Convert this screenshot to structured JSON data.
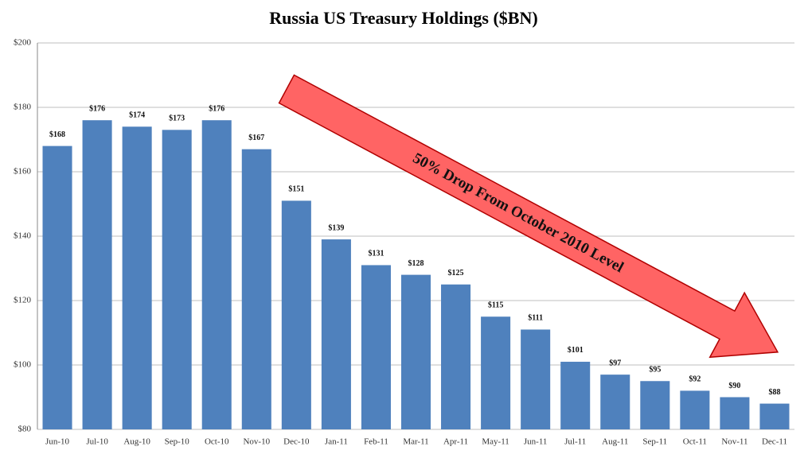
{
  "chart_data": {
    "type": "bar",
    "title": "Russia US Treasury Holdings ($BN)",
    "categories": [
      "Jun-10",
      "Jul-10",
      "Aug-10",
      "Sep-10",
      "Oct-10",
      "Nov-10",
      "Dec-10",
      "Jan-11",
      "Feb-11",
      "Mar-11",
      "Apr-11",
      "May-11",
      "Jun-11",
      "Jul-11",
      "Aug-11",
      "Sep-11",
      "Oct-11",
      "Nov-11",
      "Dec-11"
    ],
    "values": [
      168,
      176,
      174,
      173,
      176,
      167,
      151,
      139,
      131,
      128,
      125,
      115,
      111,
      101,
      97,
      95,
      92,
      90,
      88
    ],
    "value_labels": [
      "$168",
      "$176",
      "$174",
      "$173",
      "$176",
      "$167",
      "$151",
      "$139",
      "$131",
      "$128",
      "$125",
      "$115",
      "$111",
      "$101",
      "$97",
      "$95",
      "$92",
      "$90",
      "$88"
    ],
    "color": "#4f81bd",
    "ylim": [
      80,
      200
    ],
    "yticks": [
      {
        "value": 80,
        "label": "$80"
      },
      {
        "value": 100,
        "label": "$100"
      },
      {
        "value": 120,
        "label": "$120"
      },
      {
        "value": 140,
        "label": "$140"
      },
      {
        "value": 160,
        "label": "$160"
      },
      {
        "value": 180,
        "label": "$180"
      },
      {
        "value": 200,
        "label": "$200"
      }
    ],
    "grid": true,
    "annotation": "50% Drop From October 2010 Level"
  }
}
